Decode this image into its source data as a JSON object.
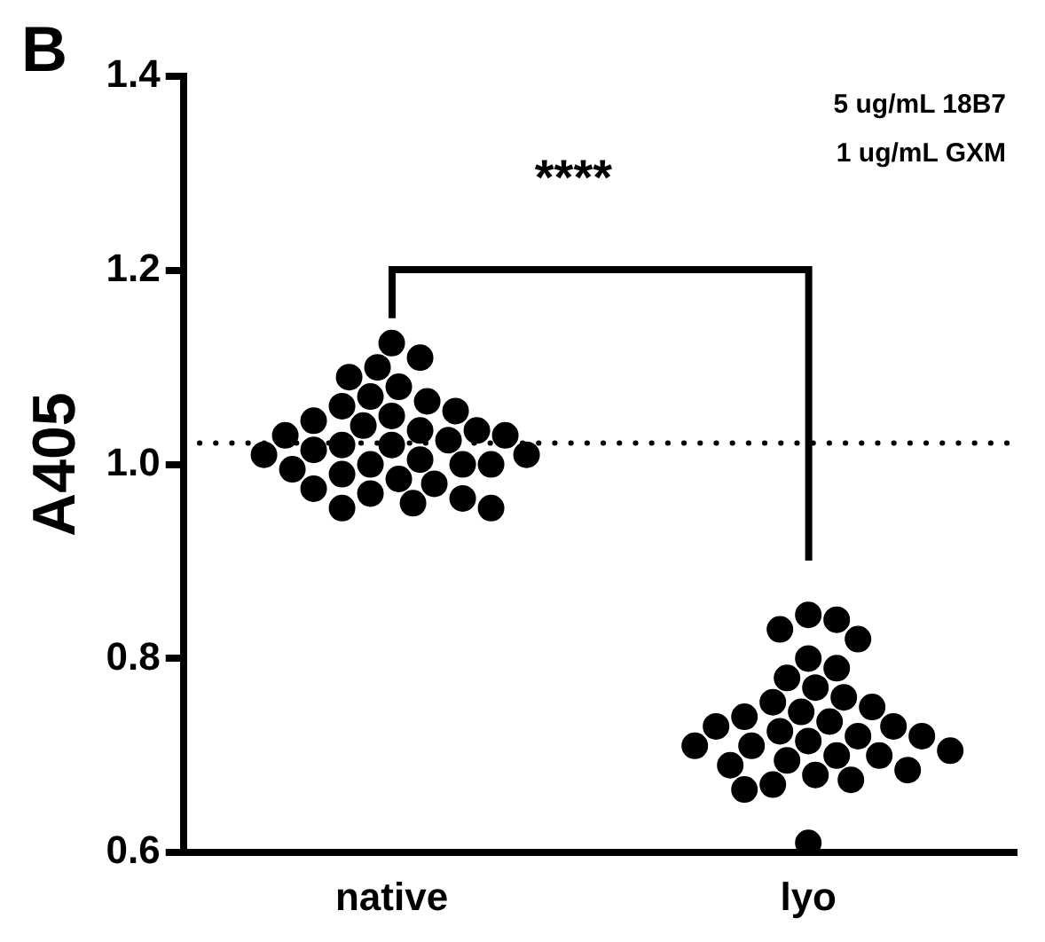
{
  "chart_data": {
    "type": "scatter",
    "ylabel": "A405",
    "categories": [
      "native",
      "lyo"
    ],
    "series": [
      {
        "color": "#000000",
        "x": [
          "native",
          "native",
          "native",
          "native",
          "native",
          "native",
          "native",
          "native",
          "native",
          "native",
          "native",
          "native",
          "native",
          "native",
          "native",
          "native",
          "native",
          "native",
          "native",
          "native",
          "native",
          "native",
          "native",
          "native",
          "native",
          "native",
          "native",
          "native",
          "native",
          "native",
          "native",
          "native",
          "native",
          "native",
          "native",
          "native"
        ],
        "values": [
          1.125,
          1.11,
          1.1,
          1.09,
          1.08,
          1.07,
          1.065,
          1.06,
          1.055,
          1.05,
          1.045,
          1.04,
          1.035,
          1.035,
          1.03,
          1.03,
          1.025,
          1.02,
          1.02,
          1.015,
          1.01,
          1.01,
          1.005,
          1.0,
          1.0,
          1.0,
          0.995,
          0.99,
          0.985,
          0.98,
          0.975,
          0.97,
          0.965,
          0.96,
          0.955,
          0.955
        ]
      },
      {
        "color": "#000000",
        "x": [
          "lyo",
          "lyo",
          "lyo",
          "lyo",
          "lyo",
          "lyo",
          "lyo",
          "lyo",
          "lyo",
          "lyo",
          "lyo",
          "lyo",
          "lyo",
          "lyo",
          "lyo",
          "lyo",
          "lyo",
          "lyo",
          "lyo",
          "lyo",
          "lyo",
          "lyo",
          "lyo",
          "lyo",
          "lyo",
          "lyo",
          "lyo",
          "lyo",
          "lyo",
          "lyo",
          "lyo",
          "lyo",
          "lyo"
        ],
        "values": [
          0.845,
          0.84,
          0.83,
          0.82,
          0.8,
          0.79,
          0.78,
          0.77,
          0.76,
          0.755,
          0.75,
          0.745,
          0.74,
          0.735,
          0.73,
          0.73,
          0.725,
          0.72,
          0.72,
          0.715,
          0.71,
          0.71,
          0.705,
          0.7,
          0.7,
          0.695,
          0.69,
          0.685,
          0.68,
          0.675,
          0.67,
          0.665,
          0.61
        ]
      }
    ],
    "ylim": [
      0.6,
      1.4
    ],
    "yticks": [
      0.6,
      0.8,
      {
        "value": 1,
        "label": "1.0"
      },
      1.2,
      1.4
    ],
    "ref_lines": [
      {
        "axis": "y",
        "value": 1.022,
        "line_style": "dotted",
        "color": "#000000"
      }
    ],
    "annotations": [
      "B",
      "5 ug/mL 18B7",
      "1 ug/mL GXM",
      "****"
    ],
    "marker": "circle",
    "grid": false,
    "legend": false
  }
}
